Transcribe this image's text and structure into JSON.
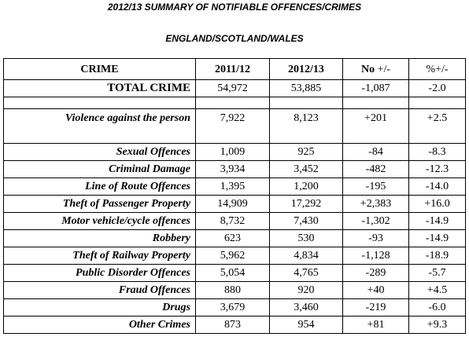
{
  "title": "2012/13 SUMMARY OF NOTIFIABLE OFFENCES/CRIMES",
  "subtitle": "ENGLAND/SCOTLAND/WALES",
  "table": {
    "headers": {
      "crime": "CRIME",
      "y1": "2011/12",
      "y2": "2012/13",
      "no_bold": "No",
      "no_rest": " +/-",
      "pct": "%+/-"
    },
    "total": {
      "crime": "TOTAL CRIME",
      "y1": "54,972",
      "y2": "53,885",
      "no": "-1,087",
      "pct": "-2.0"
    },
    "rows": [
      {
        "crime": "Violence against the person",
        "y1": "7,922",
        "y2": "8,123",
        "no": "+201",
        "pct": "+2.5"
      },
      {
        "crime": "Sexual Offences",
        "y1": "1,009",
        "y2": "925",
        "no": "-84",
        "pct": "-8.3"
      },
      {
        "crime": "Criminal Damage",
        "y1": "3,934",
        "y2": "3,452",
        "no": "-482",
        "pct": "-12.3"
      },
      {
        "crime": "Line of Route Offences",
        "y1": "1,395",
        "y2": "1,200",
        "no": "-195",
        "pct": "-14.0"
      },
      {
        "crime": "Theft of Passenger Property",
        "y1": "14,909",
        "y2": "17,292",
        "no": "+2,383",
        "pct": "+16.0"
      },
      {
        "crime": "Motor vehicle/cycle offences",
        "y1": "8,732",
        "y2": "7,430",
        "no": "-1,302",
        "pct": "-14.9"
      },
      {
        "crime": "Robbery",
        "y1": "623",
        "y2": "530",
        "no": "-93",
        "pct": "-14.9"
      },
      {
        "crime": "Theft of Railway Property",
        "y1": "5,962",
        "y2": "4,834",
        "no": "-1,128",
        "pct": "-18.9"
      },
      {
        "crime": "Public Disorder Offences",
        "y1": "5,054",
        "y2": "4,765",
        "no": "-289",
        "pct": "-5.7"
      },
      {
        "crime": "Fraud Offences",
        "y1": "880",
        "y2": "920",
        "no": "+40",
        "pct": "+4.5"
      },
      {
        "crime": "Drugs",
        "y1": "3,679",
        "y2": "3,460",
        "no": "-219",
        "pct": "-6.0"
      },
      {
        "crime": "Other Crimes",
        "y1": "873",
        "y2": "954",
        "no": "+81",
        "pct": "+9.3"
      }
    ]
  }
}
